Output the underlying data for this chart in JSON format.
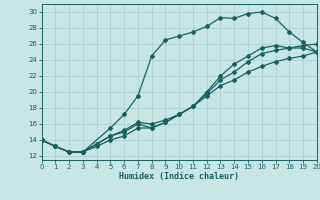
{
  "xlabel": "Humidex (Indice chaleur)",
  "xlim": [
    0,
    20
  ],
  "ylim": [
    11.5,
    31
  ],
  "xticks": [
    0,
    1,
    2,
    3,
    4,
    5,
    6,
    7,
    8,
    9,
    10,
    11,
    12,
    13,
    14,
    15,
    16,
    17,
    18,
    19,
    20
  ],
  "yticks": [
    12,
    14,
    16,
    18,
    20,
    22,
    24,
    26,
    28,
    30
  ],
  "bg_color": "#c8e6e6",
  "grid_color": "#a8cccc",
  "line_color": "#1a6060",
  "curve1_x": [
    0,
    1,
    2,
    3,
    4,
    5,
    6,
    7,
    8,
    9,
    10,
    11,
    12,
    13,
    14,
    15,
    16,
    17,
    18,
    19,
    20
  ],
  "curve1_y": [
    14.0,
    13.2,
    12.5,
    12.5,
    13.2,
    14.0,
    14.5,
    15.5,
    15.5,
    16.2,
    17.2,
    18.2,
    19.5,
    20.8,
    21.5,
    22.5,
    23.2,
    23.8,
    24.2,
    24.5,
    25.0
  ],
  "curve2_x": [
    0,
    1,
    2,
    3,
    4,
    5,
    6,
    7,
    8,
    9,
    10,
    11,
    12,
    13,
    14,
    15,
    16,
    17,
    18,
    19,
    20
  ],
  "curve2_y": [
    14.0,
    13.2,
    12.5,
    12.5,
    13.5,
    14.5,
    15.0,
    16.0,
    15.5,
    16.2,
    17.2,
    18.2,
    19.8,
    21.5,
    22.5,
    23.8,
    24.8,
    25.2,
    25.5,
    25.8,
    26.0
  ],
  "curve3_x": [
    0,
    1,
    2,
    3,
    4,
    5,
    6,
    7,
    8,
    9,
    10,
    11,
    12,
    13,
    14,
    15,
    16,
    17,
    18,
    19,
    20
  ],
  "curve3_y": [
    14.0,
    13.2,
    12.5,
    12.5,
    13.5,
    14.5,
    15.2,
    16.2,
    16.0,
    16.5,
    17.2,
    18.2,
    20.0,
    22.0,
    23.5,
    24.5,
    25.5,
    25.8,
    25.5,
    25.5,
    25.0
  ],
  "curve4_x": [
    0,
    1,
    2,
    3,
    5,
    6,
    7,
    8,
    9,
    10,
    11,
    12,
    13,
    14,
    15,
    16,
    17,
    18,
    19,
    20
  ],
  "curve4_y": [
    14.0,
    13.2,
    12.5,
    12.5,
    15.5,
    17.2,
    19.5,
    24.5,
    26.5,
    27.0,
    27.5,
    28.2,
    29.3,
    29.2,
    29.8,
    30.0,
    29.2,
    27.5,
    26.2,
    25.0
  ]
}
